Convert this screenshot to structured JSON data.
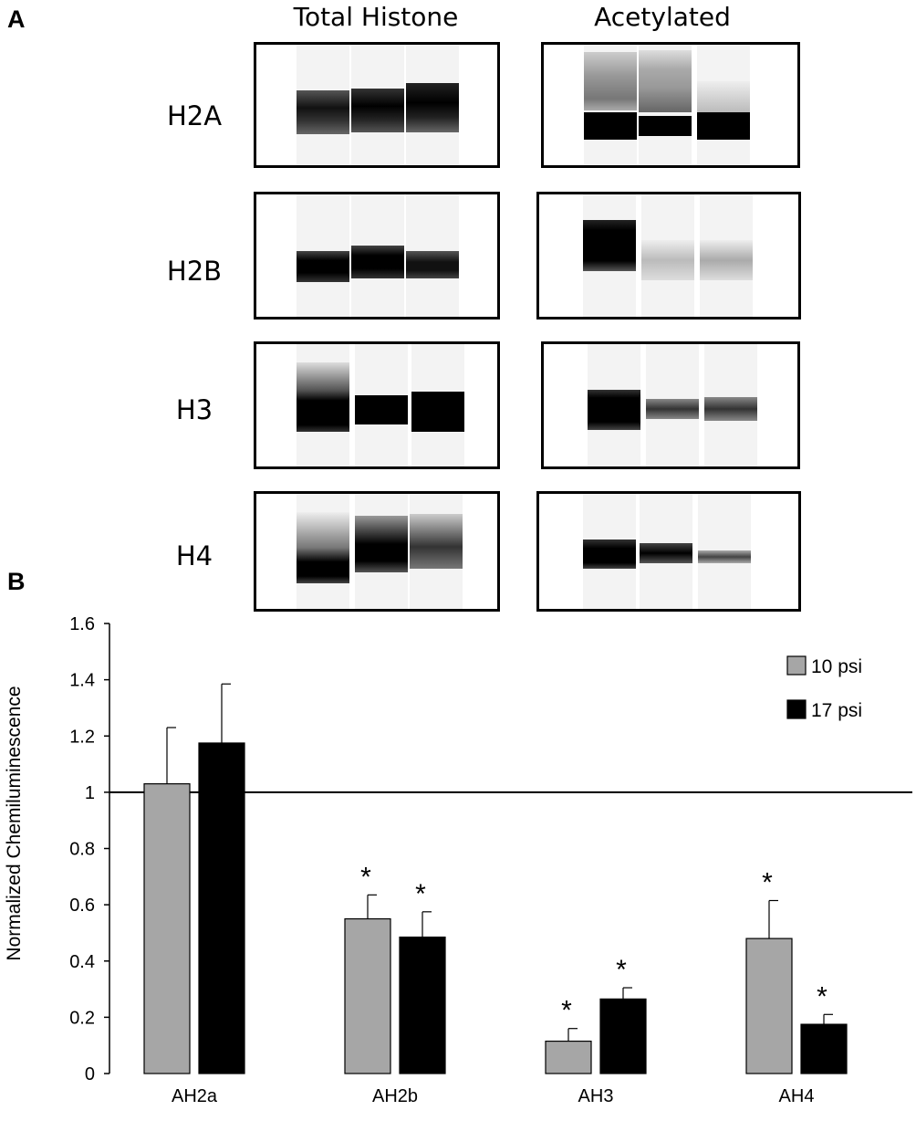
{
  "panel_a": {
    "letter": "A",
    "columns": [
      "Total Histone",
      "Acetylated"
    ],
    "rows": [
      {
        "label": "H2A"
      },
      {
        "label": "H2B"
      },
      {
        "label": "H3"
      },
      {
        "label": "H4"
      }
    ]
  },
  "panel_b": {
    "letter": "B"
  },
  "chart_data": {
    "type": "bar",
    "title": "",
    "xlabel": "",
    "ylabel": "Normalized Chemiluminescence",
    "categories": [
      "AH2a",
      "AH2b",
      "AH3",
      "AH4"
    ],
    "ylim": [
      0,
      1.6
    ],
    "yticks": [
      "0",
      "0.2",
      "0.4",
      "0.6",
      "0.8",
      "1",
      "1.2",
      "1.4",
      "1.6"
    ],
    "reference_line": 1,
    "legend_position": "top-right",
    "grid": false,
    "series": [
      {
        "name": "10 psi",
        "color": "#a6a6a6",
        "values": [
          1.03,
          0.55,
          0.115,
          0.48
        ],
        "errors": [
          0.2,
          0.085,
          0.045,
          0.135
        ],
        "significant": [
          false,
          true,
          true,
          true
        ]
      },
      {
        "name": "17 psi",
        "color": "#000000",
        "values": [
          1.175,
          0.485,
          0.265,
          0.175
        ],
        "errors": [
          0.21,
          0.09,
          0.04,
          0.035
        ],
        "significant": [
          false,
          true,
          true,
          true
        ]
      }
    ],
    "significance_marker": "*"
  }
}
